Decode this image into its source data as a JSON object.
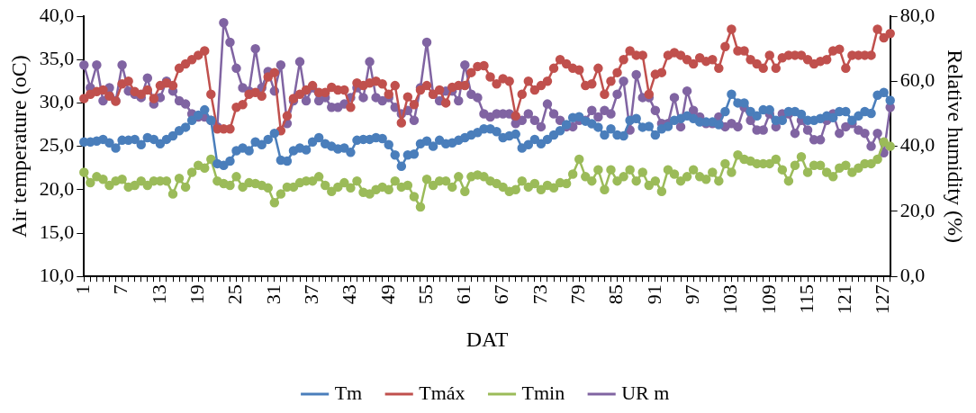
{
  "chart_data": {
    "type": "line",
    "xlabel": "DAT",
    "ylabel": "Air temperature (oC)",
    "y2label": "Relative humidity (%)",
    "categories": [
      "1",
      null,
      null,
      null,
      null,
      null,
      "7",
      null,
      null,
      null,
      null,
      null,
      "13",
      null,
      null,
      null,
      null,
      null,
      "19",
      null,
      null,
      null,
      null,
      null,
      "25",
      null,
      null,
      null,
      null,
      null,
      "31",
      null,
      null,
      null,
      null,
      null,
      "37",
      null,
      null,
      null,
      null,
      null,
      "43",
      null,
      null,
      null,
      null,
      null,
      "49",
      null,
      null,
      null,
      null,
      null,
      "55",
      null,
      null,
      null,
      null,
      null,
      "61",
      null,
      null,
      null,
      null,
      null,
      "67",
      null,
      null,
      null,
      null,
      null,
      "73",
      null,
      null,
      null,
      null,
      null,
      "79",
      null,
      null,
      null,
      null,
      null,
      "85",
      null,
      null,
      null,
      null,
      null,
      "91",
      null,
      null,
      null,
      null,
      null,
      "97",
      null,
      null,
      null,
      null,
      null,
      "103",
      null,
      null,
      null,
      null,
      null,
      "109",
      null,
      null,
      null,
      null,
      null,
      "115",
      null,
      null,
      null,
      null,
      null,
      "121",
      null,
      null,
      null,
      null,
      null,
      "127",
      null
    ],
    "ylim": [
      10,
      40
    ],
    "yticks": [
      {
        "value": 10,
        "label": "10,0"
      },
      {
        "value": 15,
        "label": "15,0"
      },
      {
        "value": 20,
        "label": "20,0"
      },
      {
        "value": 25,
        "label": "25,0"
      },
      {
        "value": 30,
        "label": "30,0"
      },
      {
        "value": 35,
        "label": "35,0"
      },
      {
        "value": 40,
        "label": "40,0"
      }
    ],
    "y2lim": [
      0,
      80
    ],
    "y2ticks": [
      {
        "value": 0,
        "label": "0,0"
      },
      {
        "value": 20,
        "label": "20,0"
      },
      {
        "value": 40,
        "label": "40,0"
      },
      {
        "value": 60,
        "label": "60,0"
      },
      {
        "value": 80,
        "label": "80,0"
      }
    ],
    "grid": false,
    "legend": "bottom",
    "marker": "circle",
    "line_style": "solid",
    "series": [
      {
        "name": "Tm",
        "color": "#4a7ebb",
        "values": [
          25.5,
          25.5,
          25.6,
          25.8,
          25.4,
          24.8,
          25.7,
          25.7,
          25.8,
          25.2,
          26.0,
          25.8,
          25.3,
          25.8,
          26.2,
          26.8,
          27.2,
          28.0,
          28.6,
          29.2,
          28.0,
          23.0,
          22.8,
          23.3,
          24.5,
          24.8,
          24.5,
          25.5,
          25.2,
          25.8,
          26.5,
          23.4,
          23.3,
          24.5,
          24.8,
          24.6,
          25.5,
          26.0,
          25.3,
          25.0,
          24.7,
          24.8,
          24.3,
          25.7,
          25.8,
          25.8,
          26.0,
          25.9,
          25.2,
          24.0,
          22.7,
          24.0,
          24.1,
          25.3,
          25.6,
          25.0,
          25.7,
          25.3,
          25.4,
          25.7,
          26.0,
          26.3,
          26.6,
          27.0,
          27.0,
          26.7,
          26.0,
          26.2,
          26.4,
          24.8,
          25.2,
          25.8,
          25.3,
          25.8,
          26.3,
          26.8,
          27.5,
          28.3,
          28.4,
          27.9,
          27.6,
          27.2,
          26.3,
          27.0,
          26.3,
          26.2,
          28.0,
          28.2,
          27.2,
          27.3,
          26.3,
          27.0,
          27.3,
          28.0,
          28.2,
          28.5,
          28.2,
          27.8,
          27.8,
          27.8,
          27.5,
          29.0,
          31.0,
          30.0,
          30.0,
          29.0,
          28.5,
          29.2,
          29.2,
          28.0,
          28.0,
          29.0,
          29.0,
          28.7,
          28.0,
          28.0,
          28.2,
          28.5,
          28.3,
          29.0,
          29.0,
          28.0,
          28.5,
          29.0,
          28.8,
          30.9,
          31.2,
          30.3
        ]
      },
      {
        "name": "Tmáx",
        "color": "#c0504d",
        "values": [
          30.5,
          31.0,
          31.3,
          31.5,
          30.8,
          30.2,
          32.2,
          32.5,
          31.3,
          31.0,
          31.5,
          30.5,
          32.0,
          32.3,
          32.0,
          34.0,
          34.5,
          35.0,
          35.5,
          36.0,
          31.0,
          27.0,
          27.0,
          27.0,
          29.5,
          29.8,
          31.0,
          31.2,
          30.8,
          33.0,
          33.5,
          26.8,
          28.5,
          30.5,
          31.0,
          31.5,
          32.0,
          31.2,
          31.2,
          31.8,
          31.5,
          31.5,
          29.5,
          32.3,
          32.0,
          32.3,
          32.5,
          32.2,
          31.0,
          32.0,
          27.7,
          30.7,
          29.8,
          31.5,
          32.0,
          31.0,
          31.5,
          30.0,
          31.8,
          32.0,
          32.0,
          33.5,
          34.2,
          34.3,
          33.0,
          32.2,
          32.8,
          32.5,
          28.5,
          31.0,
          32.5,
          31.5,
          32.0,
          32.5,
          34.0,
          35.0,
          34.5,
          34.0,
          33.8,
          32.0,
          32.2,
          34.0,
          31.0,
          32.5,
          33.5,
          35.0,
          36.0,
          35.5,
          35.5,
          31.0,
          33.3,
          33.5,
          35.5,
          35.8,
          35.5,
          35.0,
          34.5,
          35.2,
          34.8,
          35.0,
          34.0,
          36.5,
          38.5,
          36.0,
          36.0,
          35.0,
          34.5,
          34.0,
          35.5,
          34.0,
          35.2,
          35.5,
          35.5,
          35.5,
          35.0,
          34.5,
          34.8,
          35.0,
          36.0,
          36.2,
          34.0,
          35.5,
          35.5,
          35.5,
          35.5,
          38.5,
          37.5,
          38.0
        ]
      },
      {
        "name": "Tmin",
        "color": "#9bbb59",
        "values": [
          22.0,
          20.8,
          21.5,
          21.2,
          20.5,
          21.0,
          21.2,
          20.3,
          20.5,
          21.0,
          20.5,
          21.0,
          21.0,
          21.0,
          19.5,
          21.3,
          20.3,
          22.0,
          22.8,
          22.5,
          23.5,
          21.0,
          20.7,
          20.5,
          21.5,
          20.3,
          20.8,
          20.7,
          20.5,
          20.2,
          18.5,
          19.5,
          20.3,
          20.3,
          20.8,
          21.0,
          21.0,
          21.5,
          20.5,
          19.8,
          20.3,
          20.8,
          20.2,
          21.0,
          19.7,
          19.5,
          20.0,
          20.3,
          20.0,
          21.0,
          20.3,
          20.5,
          19.2,
          18.0,
          21.2,
          20.5,
          21.0,
          21.0,
          20.3,
          21.5,
          19.8,
          21.5,
          21.7,
          21.5,
          21.0,
          20.7,
          20.3,
          19.8,
          20.0,
          21.0,
          20.3,
          20.7,
          20.0,
          20.5,
          20.2,
          20.8,
          20.7,
          21.8,
          23.5,
          21.5,
          21.0,
          22.3,
          20.0,
          22.3,
          21.0,
          21.5,
          22.3,
          21.0,
          22.0,
          20.5,
          21.0,
          19.8,
          22.3,
          21.8,
          21.0,
          21.5,
          22.3,
          21.5,
          21.2,
          22.0,
          21.0,
          23.0,
          22.0,
          24.0,
          23.5,
          23.3,
          23.0,
          23.0,
          23.0,
          23.5,
          22.3,
          21.0,
          22.8,
          23.8,
          22.0,
          22.8,
          22.8,
          22.0,
          21.5,
          22.5,
          22.8,
          22.0,
          22.5,
          23.0,
          23.0,
          23.5,
          25.5,
          25.0
        ]
      },
      {
        "name": "UR m",
        "color": "#8064a2",
        "axis": "y2",
        "values": [
          65,
          58,
          65,
          54,
          58,
          54,
          65,
          57,
          56,
          55,
          61,
          53,
          55,
          60,
          57,
          54,
          53,
          50,
          49,
          49,
          48,
          46,
          78,
          72,
          64,
          58,
          57,
          70,
          58,
          63,
          57,
          65,
          47,
          54,
          66,
          54,
          58,
          54,
          55,
          52,
          52,
          53,
          55,
          58,
          55,
          66,
          55,
          54,
          55,
          52,
          50,
          51,
          48,
          58,
          72,
          56,
          54,
          57,
          57,
          54,
          65,
          56,
          55,
          50,
          49,
          50,
          50,
          50,
          47,
          48,
          50,
          48,
          46,
          53,
          50,
          48,
          46,
          46,
          48,
          48,
          51,
          49,
          51,
          50,
          56,
          60,
          45,
          62,
          55,
          55,
          51,
          47,
          47,
          55,
          46,
          57,
          51,
          49,
          47,
          47,
          49,
          46,
          47,
          46,
          52,
          48,
          45,
          45,
          50,
          46,
          50,
          50,
          44,
          48,
          45,
          42,
          42,
          48,
          50,
          44,
          46,
          47,
          45,
          44,
          40,
          44,
          38,
          52
        ]
      }
    ]
  }
}
